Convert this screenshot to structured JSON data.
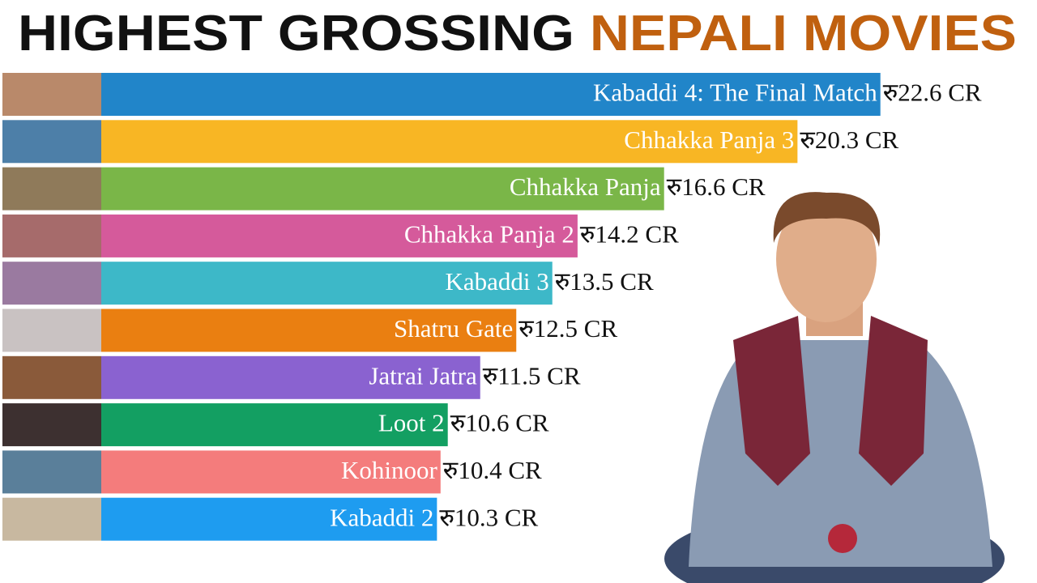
{
  "chart_data": {
    "type": "bar",
    "orientation": "horizontal",
    "title": [
      "HIGHEST GROSSING",
      "NEPALI MOVIES"
    ],
    "categories": [
      "Kabaddi 4: The Final Match",
      "Chhakka Panja 3",
      "Chhakka Panja",
      "Chhakka Panja 2",
      "Kabaddi 3",
      "Shatru Gate",
      "Jatrai Jatra",
      "Loot 2",
      "Kohinoor",
      "Kabaddi 2"
    ],
    "values": [
      22.6,
      20.3,
      16.6,
      14.2,
      13.5,
      12.5,
      11.5,
      10.6,
      10.4,
      10.3
    ],
    "value_labels": [
      "रु22.6 CR",
      "रु20.3 CR",
      "रु16.6 CR",
      "रु14.2 CR",
      "रु13.5 CR",
      "रु12.5 CR",
      "रु11.5 CR",
      "रु10.6 CR",
      "रु10.4 CR",
      "रु10.3 CR"
    ],
    "colors": [
      "#2185c9",
      "#f8b624",
      "#7ab648",
      "#d55a9b",
      "#3db8c8",
      "#ea7f11",
      "#8a62d0",
      "#139f62",
      "#f47c7c",
      "#1e9cf0"
    ]
  }
}
